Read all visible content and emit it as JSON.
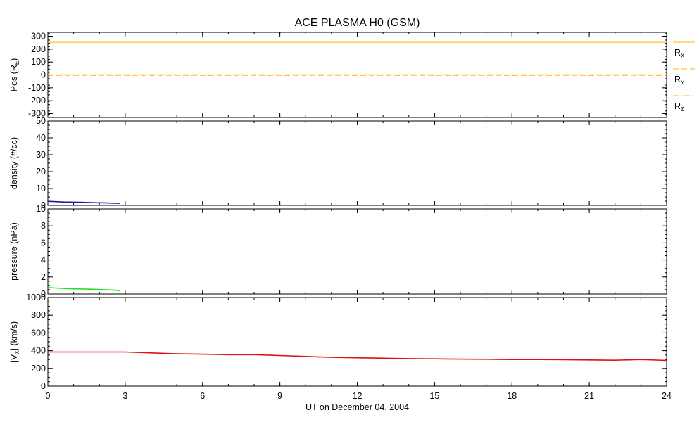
{
  "colors": {
    "pos": "#ffb400",
    "density": "#1a1aa0",
    "pressure": "#22dd22",
    "velocity": "#dd1111",
    "frame": "#000000"
  },
  "chart_data": {
    "type": "line",
    "title": "ACE PLASMA H0 (GSM)",
    "xlabel": "UT on December 04, 2004",
    "xlim": [
      0,
      24
    ],
    "xticks": [
      0,
      3,
      6,
      9,
      12,
      15,
      18,
      21,
      24
    ],
    "xtick_labels": [
      "0",
      "3",
      "6",
      "9",
      "12",
      "15",
      "18",
      "21",
      "24"
    ],
    "panels": [
      {
        "id": "position",
        "ylabel": {
          "main": "Pos (R",
          "sub": "E",
          "end": ")"
        },
        "ylim": [
          -330,
          330
        ],
        "yticks": [
          -300,
          -200,
          -100,
          0,
          100,
          200,
          300
        ],
        "ytick_labels": [
          "-300",
          "-200",
          "-100",
          "0",
          "100",
          "200",
          "300"
        ],
        "series": [
          {
            "name": "R_X",
            "label_main": "R",
            "label_sub": "X",
            "style": "solid",
            "x": [
              0,
              24
            ],
            "values": [
              253,
              253
            ]
          },
          {
            "name": "R_Y",
            "label_main": "R",
            "label_sub": "Y",
            "style": "dashed",
            "x": [
              0,
              24
            ],
            "values": [
              -4,
              -4
            ]
          },
          {
            "name": "R_Z",
            "label_main": "R",
            "label_sub": "Z",
            "style": "dashdot",
            "x": [
              0,
              24
            ],
            "values": [
              1,
              1
            ]
          }
        ]
      },
      {
        "id": "density",
        "ylabel": {
          "main": "density (#/cc)"
        },
        "ylim": [
          0,
          50
        ],
        "yticks": [
          0,
          10,
          20,
          30,
          40,
          50
        ],
        "ytick_labels": [
          "0",
          "10",
          "20",
          "30",
          "40",
          "50"
        ],
        "series": [
          {
            "x": [
              0,
              0.3,
              0.6,
              1.0,
              1.4,
              1.8,
              2.2,
              2.6,
              2.8
            ],
            "values": [
              2.4,
              2.2,
              2.0,
              1.9,
              1.8,
              1.6,
              1.5,
              1.3,
              1.2
            ]
          }
        ]
      },
      {
        "id": "pressure",
        "ylabel": {
          "main": "pressure (nPa)"
        },
        "ylim": [
          0,
          10
        ],
        "yticks": [
          0,
          2,
          4,
          6,
          8,
          10
        ],
        "ytick_labels": [
          "0",
          "2",
          "4",
          "6",
          "8",
          "10"
        ],
        "series": [
          {
            "x": [
              0,
              0.3,
              0.6,
              1.0,
              1.4,
              1.8,
              2.2,
              2.6,
              2.8
            ],
            "values": [
              0.75,
              0.7,
              0.65,
              0.6,
              0.58,
              0.55,
              0.5,
              0.45,
              0.4
            ]
          }
        ]
      },
      {
        "id": "velocity",
        "ylabel": {
          "main": "|V",
          "sub": "X",
          "end": "| (km/s)"
        },
        "ylim": [
          0,
          1000
        ],
        "yticks": [
          0,
          200,
          400,
          600,
          800,
          1000
        ],
        "ytick_labels": [
          "0",
          "200",
          "400",
          "600",
          "800",
          "1000"
        ],
        "series": [
          {
            "x": [
              0,
              1,
              2,
              3,
              4,
              5,
              6,
              7,
              8,
              9,
              10,
              11,
              12,
              13,
              14,
              15,
              16,
              17,
              18,
              19,
              20,
              21,
              22,
              23,
              24
            ],
            "values": [
              385,
              385,
              385,
              385,
              375,
              365,
              360,
              355,
              355,
              345,
              335,
              325,
              320,
              315,
              310,
              308,
              305,
              303,
              300,
              300,
              298,
              295,
              292,
              300,
              290
            ]
          }
        ]
      }
    ]
  }
}
